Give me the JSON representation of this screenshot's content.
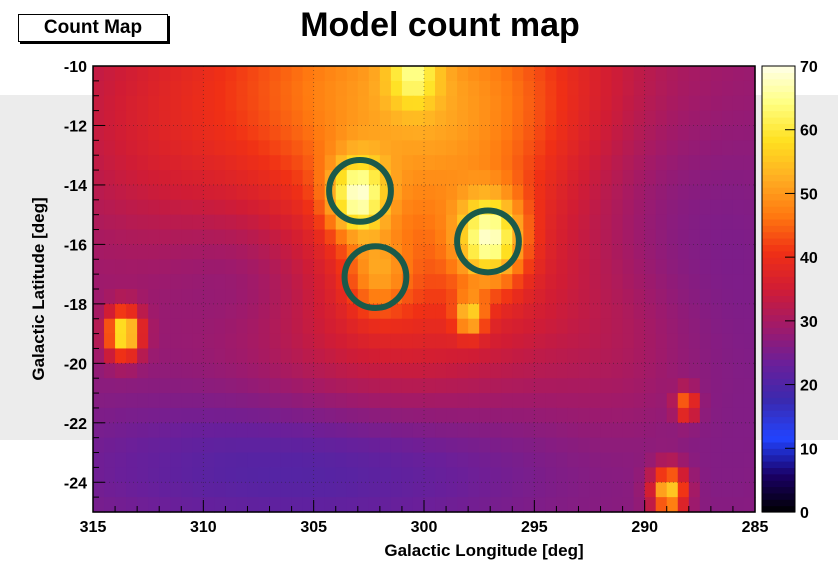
{
  "panel": {
    "legend_label": "Count Map",
    "title": "Model count map"
  },
  "chart_data": {
    "type": "heatmap",
    "title": "Model count map",
    "xlabel": "Galactic Longitude [deg]",
    "ylabel": "Galactic Latitude [deg]",
    "xlim": [
      315,
      285
    ],
    "ylim": [
      -25,
      -10
    ],
    "zlim": [
      0,
      70
    ],
    "x_ticks": [
      "315",
      "310",
      "305",
      "300",
      "295",
      "290",
      "285"
    ],
    "y_ticks": [
      "-10",
      "-12",
      "-14",
      "-16",
      "-18",
      "-20",
      "-22",
      "-24"
    ],
    "z_ticks": [
      "0",
      "10",
      "20",
      "30",
      "40",
      "50",
      "60",
      "70"
    ],
    "grid": true,
    "colorbar": "right",
    "palette": [
      "#000000",
      "#1a0066",
      "#2244ff",
      "#3a2ab0",
      "#6a1f9a",
      "#a01a6a",
      "#d01c35",
      "#f03015",
      "#ff7a10",
      "#ffae22",
      "#ffe020",
      "#ffff80",
      "#ffffe8"
    ],
    "circle_color": "#1a5a4a",
    "circles": [
      {
        "l": 302.9,
        "b": -14.2,
        "r": 1.4
      },
      {
        "l": 302.2,
        "b": -17.1,
        "r": 1.4
      },
      {
        "l": 297.1,
        "b": -15.9,
        "r": 1.4
      }
    ],
    "sources": [
      {
        "l": 303.0,
        "b": -14.4,
        "amp": 24,
        "sigma": 0.9
      },
      {
        "l": 302.1,
        "b": -17.0,
        "amp": 10,
        "sigma": 0.9
      },
      {
        "l": 297.0,
        "b": -15.8,
        "amp": 26,
        "sigma": 1.0
      },
      {
        "l": 313.6,
        "b": -19.0,
        "amp": 34,
        "sigma": 0.55
      },
      {
        "l": 297.9,
        "b": -18.4,
        "amp": 18,
        "sigma": 0.45
      },
      {
        "l": 288.9,
        "b": -24.3,
        "amp": 30,
        "sigma": 0.55
      },
      {
        "l": 288.1,
        "b": -21.4,
        "amp": 20,
        "sigma": 0.35
      },
      {
        "l": 300.5,
        "b": -10.2,
        "amp": 14,
        "sigma": 0.8
      }
    ]
  }
}
